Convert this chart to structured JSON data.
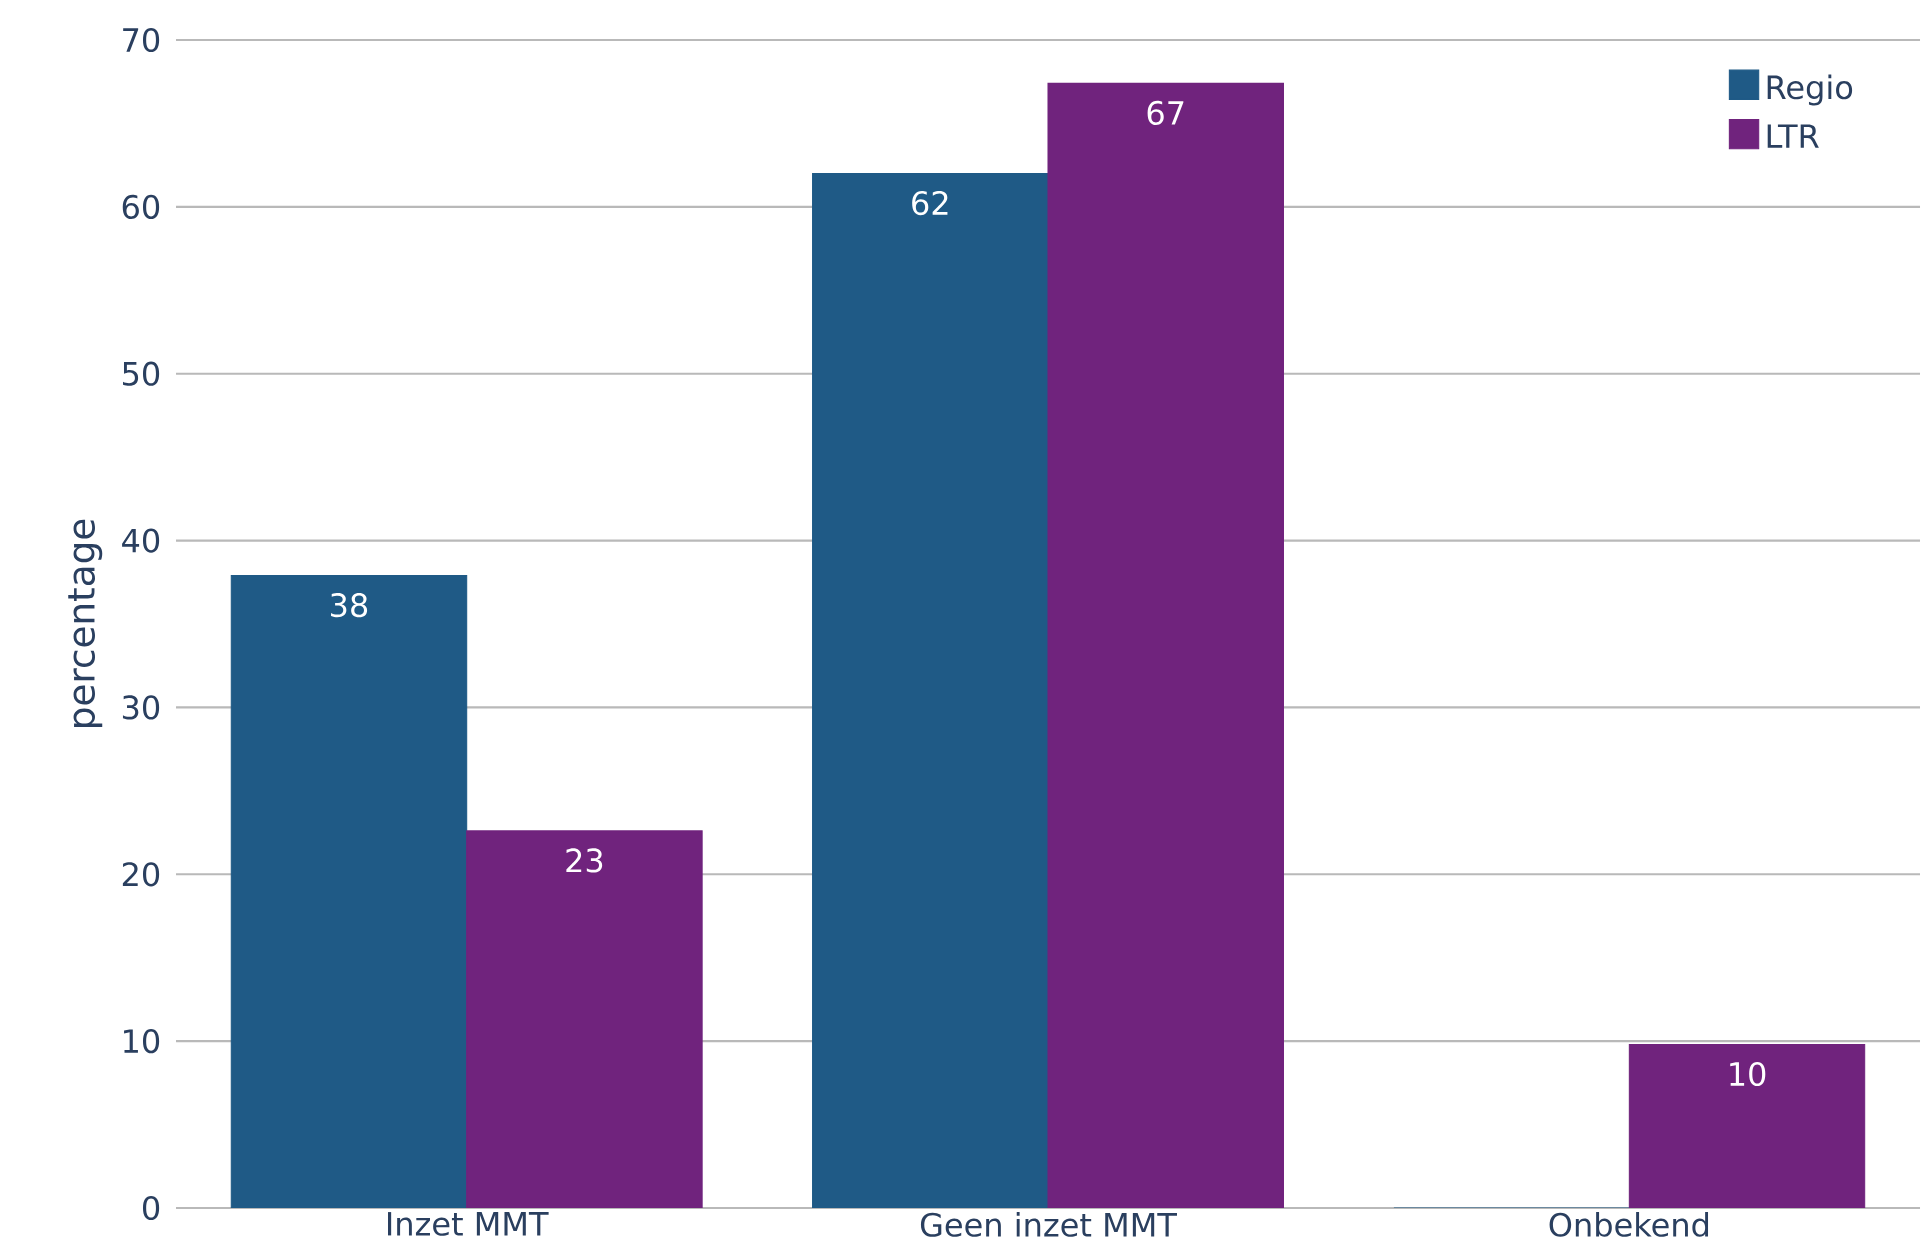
{
  "chart_data": {
    "type": "bar",
    "ylabel": "percentage",
    "categories": [
      "Inzet MMT",
      "Geen inzet MMT",
      "Onbekend"
    ],
    "series": [
      {
        "name": "Regio",
        "color": "#1f5a86",
        "values": [
          37.9,
          62.0,
          0
        ],
        "value_labels": [
          "38",
          "62",
          null
        ]
      },
      {
        "name": "LTR",
        "color": "#70237d",
        "values": [
          22.6,
          67.4,
          9.8
        ],
        "value_labels": [
          "23",
          "67",
          "10"
        ]
      }
    ],
    "ylim": [
      0,
      70
    ],
    "yticks": [
      0,
      10,
      20,
      30,
      40,
      50,
      60,
      70
    ],
    "grid": "y",
    "legend": "top right"
  }
}
